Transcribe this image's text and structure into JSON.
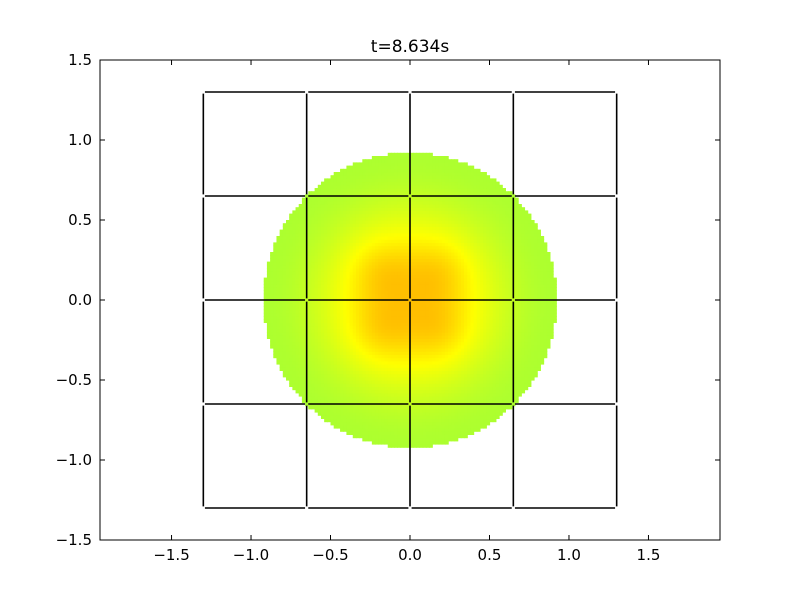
{
  "chart_data": {
    "type": "heatmap",
    "title": "t=8.634s",
    "xlabel": "",
    "ylabel": "",
    "xlim": [
      -1.95,
      1.95
    ],
    "ylim": [
      -1.5,
      1.5
    ],
    "x_ticks": [
      -1.5,
      -1.0,
      -0.5,
      0.0,
      0.5,
      1.0,
      1.5
    ],
    "x_tick_labels": [
      "−1.5",
      "−1.0",
      "−0.5",
      "0.0",
      "0.5",
      "1.0",
      "1.5"
    ],
    "y_ticks": [
      -1.5,
      -1.0,
      -0.5,
      0.0,
      0.5,
      1.0,
      1.5
    ],
    "y_tick_labels": [
      "−1.5",
      "−1.0",
      "−0.5",
      "0.0",
      "0.5",
      "1.0",
      "1.5"
    ],
    "grid": false,
    "field": {
      "shape": "disk",
      "center": [
        0.0,
        0.0
      ],
      "radius": 0.92,
      "peaks": [
        [
          -0.18,
          0.18
        ],
        [
          0.18,
          0.18
        ],
        [
          -0.18,
          -0.18
        ],
        [
          0.18,
          -0.18
        ]
      ],
      "colors": {
        "edge": "#adff2f",
        "mid": "#ffff00",
        "peak": "#ffb300"
      }
    },
    "mesh": {
      "x_lines": [
        -1.3,
        -0.65,
        0.0,
        0.65,
        1.3
      ],
      "y_lines": [
        -1.3,
        -0.65,
        0.0,
        0.65,
        1.3
      ],
      "color": "#000000"
    }
  }
}
